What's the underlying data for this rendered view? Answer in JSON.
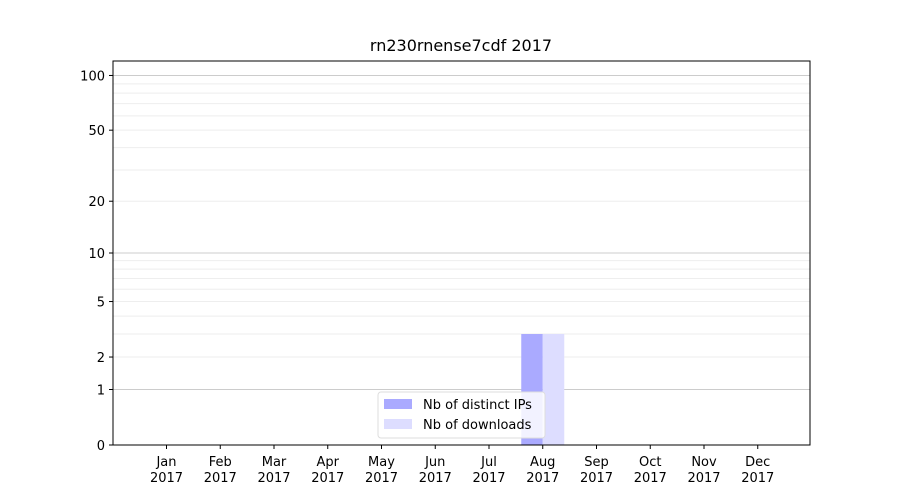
{
  "chart_data": {
    "type": "bar",
    "title": "rn230rnense7cdf 2017",
    "categories": [
      "Jan",
      "Feb",
      "Mar",
      "Apr",
      "May",
      "Jun",
      "Jul",
      "Aug",
      "Sep",
      "Oct",
      "Nov",
      "Dec"
    ],
    "category_year": "2017",
    "series": [
      {
        "name": "Nb of distinct IPs",
        "values": [
          0,
          0,
          0,
          0,
          0,
          0,
          0,
          3,
          0,
          0,
          0,
          0
        ],
        "color": "#aaaaff"
      },
      {
        "name": "Nb of downloads",
        "values": [
          0,
          0,
          0,
          0,
          0,
          0,
          0,
          3,
          0,
          0,
          0,
          0
        ],
        "color": "#ddddff"
      }
    ],
    "y_scale": "symlog",
    "yticks": [
      0,
      1,
      2,
      5,
      10,
      20,
      50,
      100
    ],
    "ylim": [
      0,
      120
    ],
    "grid": true,
    "legend_position": "bottom-center"
  }
}
